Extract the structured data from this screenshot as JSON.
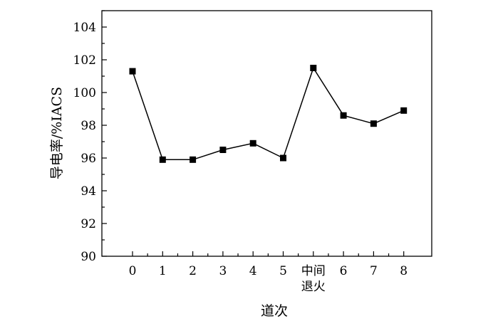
{
  "chart_data": {
    "type": "line",
    "title": "",
    "xlabel": "道次",
    "ylabel": "导电率/%IACS",
    "categories": [
      "0",
      "1",
      "2",
      "3",
      "4",
      "5",
      "中间\n退火",
      "6",
      "7",
      "8"
    ],
    "series": [
      {
        "values": [
          101.3,
          95.9,
          95.9,
          96.5,
          96.9,
          96.0,
          101.5,
          98.6,
          98.1,
          98.9
        ]
      }
    ],
    "ylim": [
      90,
      105
    ],
    "yticks": [
      90,
      92,
      94,
      96,
      98,
      100,
      102,
      104
    ],
    "grid": false,
    "legend": "none",
    "marker": "square",
    "colors": {
      "line": "#000000",
      "marker": "#000000",
      "axis": "#000000"
    }
  }
}
